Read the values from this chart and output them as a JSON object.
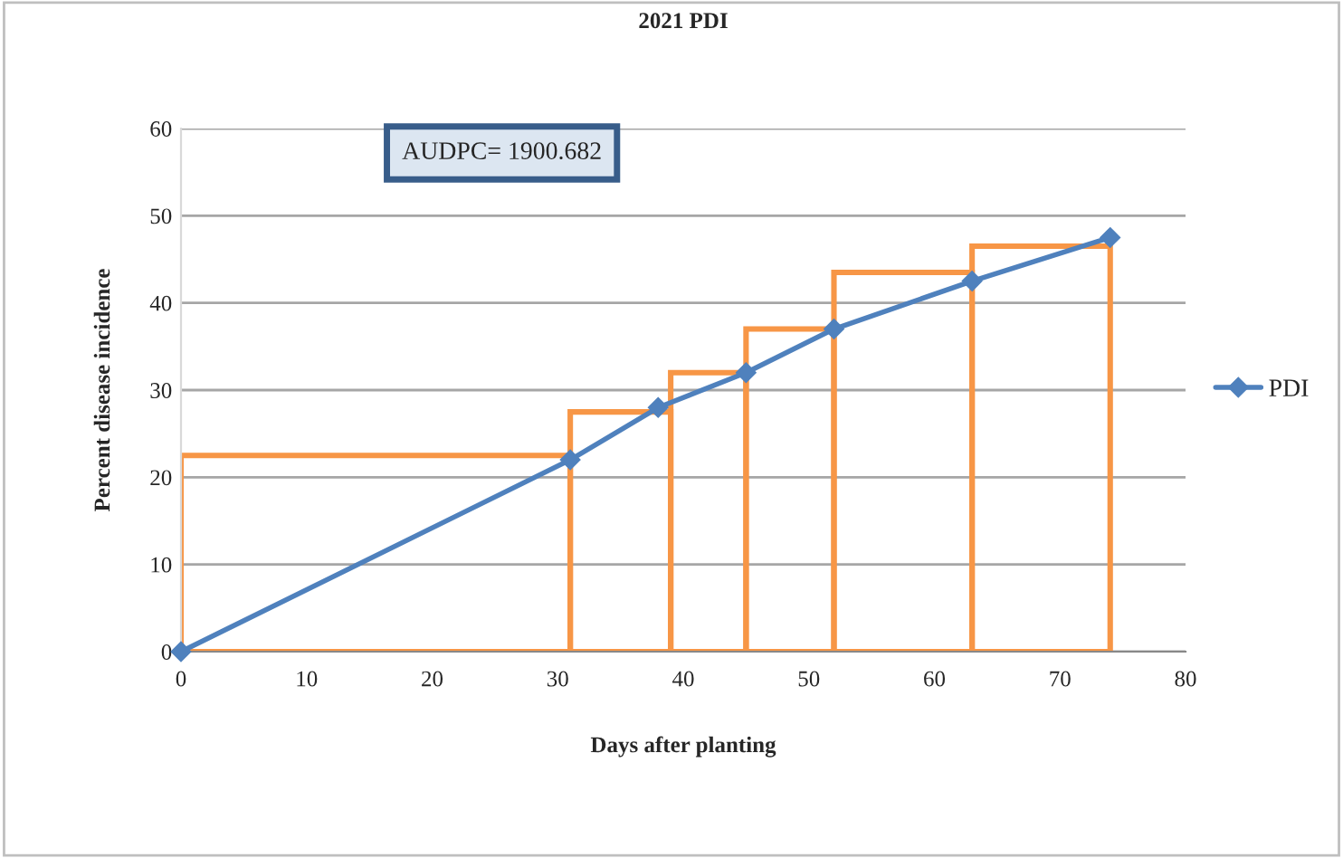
{
  "chart_data": {
    "type": "line",
    "title": "2021 PDI",
    "xlabel": "Days after planting",
    "ylabel": "Percent disease incidence",
    "annotations": [
      "AUDPC= 1900.682"
    ],
    "series": [
      {
        "name": "PDI",
        "color": "#4f81bd",
        "x": [
          0,
          31,
          38,
          45,
          52,
          63,
          74
        ],
        "values": [
          0,
          22,
          28,
          32,
          37,
          42.5,
          47.5
        ],
        "marker": "diamond"
      },
      {
        "type": "histogram",
        "color": "#f79646",
        "bins": [
          0,
          31,
          39,
          45,
          52,
          63,
          74
        ],
        "values": [
          22.5,
          27.5,
          32,
          37,
          43.5,
          46.5
        ]
      }
    ],
    "xlim": [
      0,
      80
    ],
    "xticks": [
      0,
      10,
      20,
      30,
      40,
      50,
      60,
      70,
      80
    ],
    "ylim": [
      0,
      60
    ],
    "yticks": [
      0,
      10,
      20,
      30,
      40,
      50,
      60
    ],
    "grid": "y",
    "legend": "right"
  }
}
